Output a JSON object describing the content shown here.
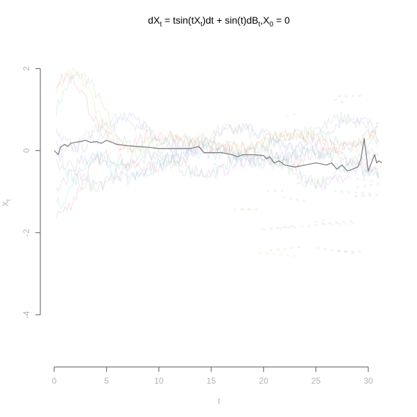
{
  "chart_data": {
    "type": "line",
    "title": {
      "parts": [
        {
          "t": "dX",
          "sub": false
        },
        {
          "t": "t",
          "sub": true
        },
        {
          "t": " = tsin(tX",
          "sub": false
        },
        {
          "t": "t",
          "sub": true
        },
        {
          "t": ")dt + sin(t)dB",
          "sub": false
        },
        {
          "t": "t",
          "sub": true
        },
        {
          "t": ",X",
          "sub": false
        },
        {
          "t": "0",
          "sub": true
        },
        {
          "t": " = 0",
          "sub": false
        }
      ]
    },
    "xlabel": "t",
    "ylabel": {
      "main": "X",
      "sub": "t"
    },
    "xlim": [
      0,
      31.4
    ],
    "ylim": [
      -4.9,
      2.4
    ],
    "x_ticks": [
      {
        "v": 0,
        "label": "0"
      },
      {
        "v": 5,
        "label": "5"
      },
      {
        "v": 10,
        "label": "10"
      },
      {
        "v": 15,
        "label": "15"
      },
      {
        "v": 20,
        "label": "20"
      },
      {
        "v": 25,
        "label": "25"
      },
      {
        "v": 30,
        "label": "30"
      }
    ],
    "y_ticks": [
      {
        "v": 2,
        "label": "2"
      },
      {
        "v": 0,
        "label": "0"
      },
      {
        "v": -2,
        "label": "-2"
      },
      {
        "v": -4,
        "label": "-4"
      }
    ],
    "series": [
      {
        "color": "#808080",
        "x": [
          0,
          0.2,
          0.4,
          0.6,
          0.8,
          1.0,
          1.3,
          1.6,
          2.0,
          2.5,
          3.0,
          3.5,
          4.0,
          4.5,
          5.0,
          6.0,
          7.0,
          8.0,
          9.0,
          10.0,
          11.0,
          12.0,
          13.0,
          13.5,
          13.8,
          14.0,
          14.3,
          15.0,
          16.0,
          17.0,
          17.5,
          18.0,
          19.0,
          20.0,
          20.3,
          20.6,
          21.0,
          21.5,
          22.0,
          23.0,
          24.0,
          25.0,
          26.0,
          26.5,
          27.0,
          27.5,
          28.0,
          28.5,
          29.0,
          29.3,
          29.6,
          29.8,
          30.0,
          30.3,
          30.6,
          30.8,
          31.0,
          31.3
        ],
        "y": [
          0.0,
          -0.05,
          -0.1,
          0.08,
          0.12,
          0.15,
          0.1,
          0.18,
          0.2,
          0.22,
          0.25,
          0.2,
          0.22,
          0.18,
          0.25,
          0.15,
          0.12,
          0.1,
          0.08,
          0.05,
          0.05,
          0.05,
          0.05,
          0.08,
          0.1,
          0.05,
          -0.05,
          -0.05,
          -0.05,
          -0.1,
          -0.15,
          -0.1,
          -0.1,
          -0.12,
          -0.2,
          -0.15,
          -0.3,
          -0.25,
          -0.35,
          -0.4,
          -0.35,
          -0.3,
          -0.35,
          -0.3,
          -0.45,
          -0.35,
          -0.5,
          -0.45,
          -0.4,
          -0.2,
          0.3,
          -0.1,
          -0.5,
          -0.3,
          -0.1,
          -0.3,
          -0.25,
          -0.3
        ]
      }
    ]
  }
}
